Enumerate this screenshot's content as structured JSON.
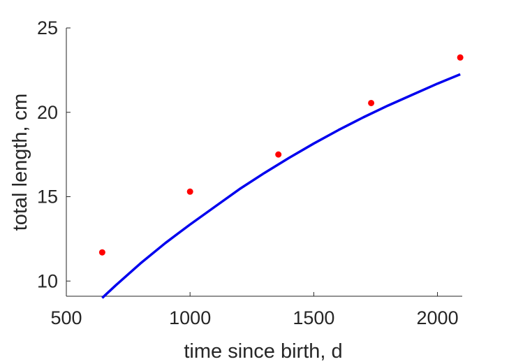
{
  "chart_data": {
    "type": "line",
    "title": "",
    "xlabel": "time since birth, d",
    "ylabel": "total length, cm",
    "xlim": [
      500,
      2100
    ],
    "ylim": [
      9.1,
      25
    ],
    "xticks": [
      500,
      1000,
      1500,
      2000
    ],
    "yticks": [
      10,
      15,
      20,
      25
    ],
    "grid": false,
    "legend": "none",
    "series": [
      {
        "kind": "scatter",
        "color": "#ff0000",
        "x": [
          645,
          1000,
          1357,
          1732,
          2092
        ],
        "y": [
          11.7,
          15.3,
          17.5,
          20.55,
          23.25
        ]
      },
      {
        "kind": "line",
        "color": "#0000ee",
        "x": [
          645,
          700,
          800,
          900,
          1000,
          1100,
          1200,
          1300,
          1400,
          1500,
          1600,
          1700,
          1800,
          1900,
          2000,
          2092
        ],
        "y": [
          9.0,
          9.75,
          11.05,
          12.25,
          13.35,
          14.4,
          15.45,
          16.4,
          17.3,
          18.15,
          18.95,
          19.7,
          20.4,
          21.05,
          21.7,
          22.25
        ]
      }
    ]
  }
}
